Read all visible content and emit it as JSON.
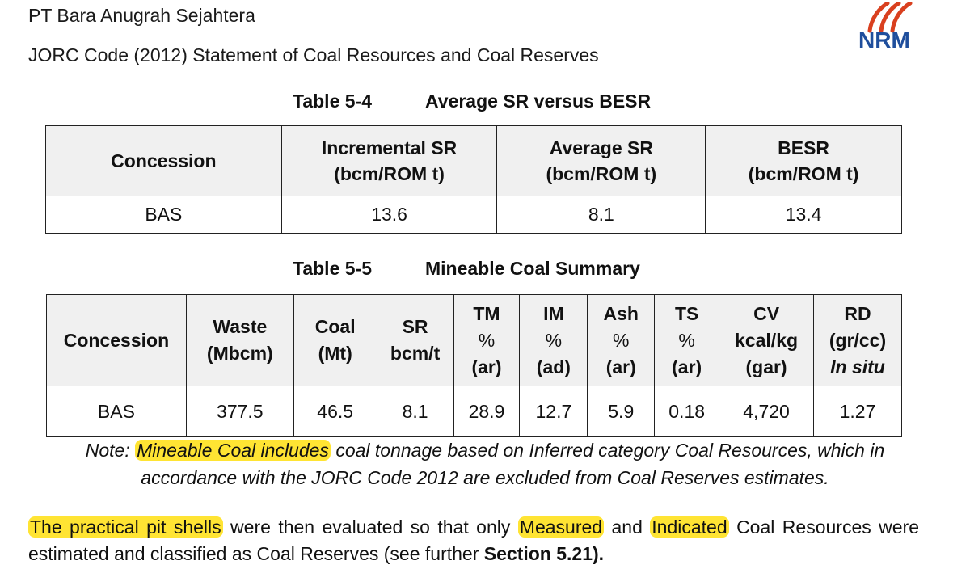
{
  "header": {
    "company": "PT Bara Anugrah Sejahtera",
    "document_title": "JORC Code (2012) Statement of Coal Resources and Coal Reserves",
    "logo_text": "NRM",
    "logo_color": "#1f4e9c",
    "logo_accent_color": "#d9401f"
  },
  "table1": {
    "number": "Table 5-4",
    "title": "Average SR versus BESR",
    "headers": [
      {
        "line1": "Concession",
        "line2": ""
      },
      {
        "line1": "Incremental SR",
        "line2": "(bcm/ROM t)"
      },
      {
        "line1": "Average SR",
        "line2": "(bcm/ROM t)"
      },
      {
        "line1": "BESR",
        "line2": "(bcm/ROM t)"
      }
    ],
    "rows": [
      [
        "BAS",
        "13.6",
        "8.1",
        "13.4"
      ]
    ]
  },
  "table2": {
    "number": "Table 5-5",
    "title": "Mineable Coal Summary",
    "headers": {
      "concession": "Concession",
      "waste": {
        "line1": "Waste",
        "line2": "(Mbcm)"
      },
      "coal": {
        "line1": "Coal",
        "line2": "(Mt)"
      },
      "sr": {
        "line1": "SR",
        "line2": "bcm/t"
      },
      "tm": {
        "line1": "TM",
        "line2": "%",
        "line3": "(ar)"
      },
      "im": {
        "line1": "IM",
        "line2": "%",
        "line3": "(ad)"
      },
      "ash": {
        "line1": "Ash",
        "line2": "%",
        "line3": "(ar)"
      },
      "ts": {
        "line1": "TS",
        "line2": "%",
        "line3": "(ar)"
      },
      "cv": {
        "line1": "CV",
        "line2": "kcal/kg",
        "line3": "(gar)"
      },
      "rd": {
        "line1": "RD",
        "line2": "(gr/cc)",
        "line3": "In situ"
      }
    },
    "rows": [
      [
        "BAS",
        "377.5",
        "46.5",
        "8.1",
        "28.9",
        "12.7",
        "5.9",
        "0.18",
        "4,720",
        "1.27"
      ]
    ]
  },
  "note": {
    "prefix": "Note: ",
    "highlight": "Mineable Coal includes",
    "rest_line1": " coal tonnage based on Inferred category Coal Resources, which in",
    "line2": "accordance with the JORC Code 2012 are excluded from Coal Reserves estimates."
  },
  "paragraph": {
    "hl1": "The practical pit shells",
    "text1": " were then evaluated so that only ",
    "hl2": "Measured",
    "text2": " and ",
    "hl3": "Indicated",
    "text3": " Coal Resources were estimated and classified as Coal Reserves (see further ",
    "bold": "Section 5.21).",
    "highlight_color": "#ffe433"
  }
}
